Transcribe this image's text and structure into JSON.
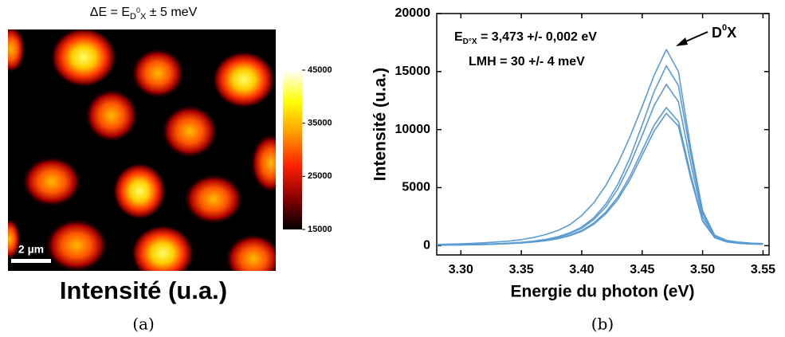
{
  "chart_data": [
    {
      "type": "heatmap",
      "title": {
        "text": "ΔE = E",
        "sub": "D",
        "sup": "0",
        "sub2": "X",
        "rest": " ± 5 meV"
      },
      "scale_bar": "2 µm",
      "xlabel": "Intensité (u.a.)",
      "colormap": [
        "#000000",
        "#8b0000",
        "#ff2000",
        "#ff9900",
        "#ffff00",
        "#ffffff"
      ],
      "clim": [
        15000,
        45000
      ],
      "cticks": [
        15000,
        25000,
        35000,
        45000
      ]
    },
    {
      "type": "line",
      "xlabel": "Energie du photon (eV)",
      "ylabel": "Intensité (u.a.)",
      "annotations": {
        "e_main": "E",
        "e_sub": "D°X",
        "e_rest": " = 3,473 +/- 0,002 eV",
        "lmh": "LMH = 30 +/- 4 meV",
        "peak_main": "D",
        "peak_sup": "0",
        "peak_rest": "X"
      },
      "xlim": [
        3.28,
        3.555
      ],
      "xticks": [
        {
          "value": 3.3,
          "label": "3.30"
        },
        3.35,
        {
          "value": 3.4,
          "label": "3.40"
        },
        3.45,
        {
          "value": 3.5,
          "label": "3.50"
        },
        3.55
      ],
      "ylim": [
        -800,
        20000
      ],
      "yticks": [
        0,
        5000,
        10000,
        15000,
        20000
      ],
      "x": [
        3.28,
        3.29,
        3.3,
        3.31,
        3.32,
        3.33,
        3.34,
        3.35,
        3.36,
        3.37,
        3.38,
        3.39,
        3.4,
        3.41,
        3.42,
        3.43,
        3.44,
        3.45,
        3.46,
        3.47,
        3.48,
        3.49,
        3.5,
        3.51,
        3.52,
        3.53,
        3.54,
        3.55
      ],
      "series": [
        {
          "color": "#5b9bd5",
          "values": [
            100,
            130,
            160,
            200,
            250,
            320,
            400,
            520,
            700,
            950,
            1300,
            1800,
            2600,
            3700,
            5200,
            7100,
            9400,
            12000,
            14700,
            16900,
            15000,
            8500,
            3000,
            900,
            450,
            300,
            220,
            180
          ]
        },
        {
          "color": "#5b9bd5",
          "values": [
            50,
            60,
            80,
            100,
            130,
            170,
            220,
            290,
            390,
            540,
            760,
            1100,
            1600,
            2400,
            3600,
            5300,
            7600,
            10400,
            13300,
            15500,
            13800,
            8000,
            2800,
            850,
            400,
            250,
            180,
            140
          ]
        },
        {
          "color": "#5b9bd5",
          "values": [
            50,
            60,
            75,
            95,
            120,
            160,
            210,
            280,
            370,
            510,
            720,
            1040,
            1500,
            2250,
            3350,
            4900,
            7000,
            9500,
            12100,
            13900,
            12400,
            7200,
            2500,
            800,
            380,
            240,
            170,
            130
          ]
        },
        {
          "color": "#5b9bd5",
          "values": [
            40,
            50,
            65,
            85,
            110,
            140,
            185,
            245,
            330,
            450,
            630,
            900,
            1300,
            1950,
            2900,
            4200,
            6000,
            8200,
            10400,
            11900,
            10700,
            6200,
            2200,
            700,
            330,
            210,
            150,
            120
          ]
        },
        {
          "color": "#5b9bd5",
          "values": [
            40,
            50,
            60,
            80,
            100,
            135,
            175,
            230,
            310,
            420,
            590,
            850,
            1230,
            1850,
            2750,
            4000,
            5700,
            7800,
            9900,
            11400,
            10300,
            5900,
            2100,
            680,
            320,
            200,
            150,
            110
          ]
        }
      ]
    }
  ],
  "captions": [
    "(a)",
    "(b)"
  ]
}
